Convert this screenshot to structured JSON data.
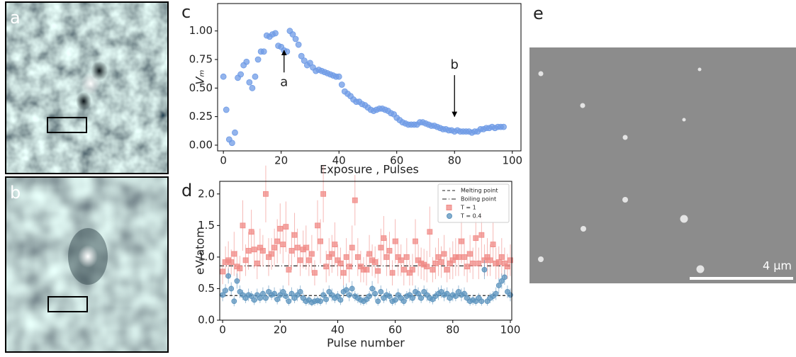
{
  "panel_labels": {
    "a": "a",
    "b": "b",
    "c": "c",
    "d": "d",
    "e": "e"
  },
  "scale_bar": "4 µm",
  "chart_data": [
    {
      "type": "scatter",
      "xlabel": "Exposure , Pulses",
      "ylabel": "Vₘ",
      "xlim": [
        -2,
        103
      ],
      "ylim": [
        -0.05,
        1.24
      ],
      "xticks": [
        0,
        20,
        40,
        60,
        80,
        100
      ],
      "yticks": [
        {
          "value": 0,
          "label": "0.00"
        },
        {
          "value": 0.25,
          "label": "0.25"
        },
        {
          "value": 0.5,
          "label": "0.50"
        },
        {
          "value": 0.75,
          "label": "0.75"
        },
        {
          "value": 1,
          "label": "1.00"
        }
      ],
      "series": [
        {
          "color": "#6f9be6",
          "marker": "circle",
          "x": [
            0,
            1,
            2,
            3,
            4,
            5,
            6,
            7,
            8,
            9,
            10,
            11,
            12,
            13,
            14,
            15,
            16,
            17,
            18,
            19,
            20,
            21,
            22,
            23,
            24,
            25,
            26,
            27,
            28,
            29,
            30,
            31,
            32,
            33,
            34,
            35,
            36,
            37,
            38,
            39,
            40,
            41,
            42,
            43,
            44,
            45,
            46,
            47,
            48,
            49,
            50,
            51,
            52,
            53,
            54,
            55,
            56,
            57,
            58,
            59,
            60,
            61,
            62,
            63,
            64,
            65,
            66,
            67,
            68,
            69,
            70,
            71,
            72,
            73,
            74,
            75,
            76,
            77,
            78,
            79,
            80,
            81,
            82,
            83,
            84,
            85,
            86,
            87,
            88,
            89,
            90,
            91,
            92,
            93,
            94,
            95,
            96,
            97
          ],
          "values": [
            0.6,
            0.31,
            0.05,
            0.02,
            0.11,
            0.59,
            0.62,
            0.7,
            0.73,
            0.55,
            0.5,
            0.6,
            0.75,
            0.82,
            0.82,
            0.96,
            0.95,
            0.97,
            0.98,
            0.87,
            0.86,
            0.83,
            0.82,
            1.0,
            0.97,
            0.93,
            0.88,
            0.78,
            0.74,
            0.7,
            0.72,
            0.68,
            0.65,
            0.66,
            0.65,
            0.64,
            0.63,
            0.62,
            0.61,
            0.6,
            0.6,
            0.53,
            0.47,
            0.45,
            0.43,
            0.4,
            0.38,
            0.38,
            0.36,
            0.35,
            0.33,
            0.31,
            0.3,
            0.31,
            0.32,
            0.32,
            0.31,
            0.3,
            0.28,
            0.27,
            0.24,
            0.22,
            0.2,
            0.19,
            0.18,
            0.18,
            0.18,
            0.18,
            0.2,
            0.2,
            0.19,
            0.18,
            0.17,
            0.17,
            0.16,
            0.15,
            0.14,
            0.14,
            0.13,
            0.13,
            0.12,
            0.13,
            0.12,
            0.12,
            0.12,
            0.12,
            0.11,
            0.12,
            0.12,
            0.14,
            0.14,
            0.15,
            0.15,
            0.16,
            0.15,
            0.16,
            0.16,
            0.16
          ]
        }
      ],
      "annotations": [
        {
          "text": "a",
          "xy": [
            21,
            0.83
          ],
          "xytext": [
            21,
            0.55
          ]
        },
        {
          "text": "b",
          "xy": [
            80,
            0.25
          ],
          "xytext": [
            80,
            0.7
          ]
        }
      ]
    },
    {
      "type": "scatter",
      "xlabel": "Pulse number",
      "ylabel": "eV/atom",
      "xlim": [
        -1,
        100.5
      ],
      "ylim": [
        0,
        2.2
      ],
      "xticks": [
        0,
        20,
        40,
        60,
        80,
        100
      ],
      "yticks": [
        {
          "value": 0,
          "label": "0.0"
        },
        {
          "value": 0.5,
          "label": "0.5"
        },
        {
          "value": 1,
          "label": "1.0"
        },
        {
          "value": 1.5,
          "label": "1.5"
        },
        {
          "value": 2,
          "label": "2.0"
        }
      ],
      "legend": "upper right",
      "hlines": [
        {
          "name": "Melting point",
          "value": 0.39,
          "style": "dashed",
          "color": "#222"
        },
        {
          "name": "Boiling point",
          "value": 0.86,
          "style": "dashdot",
          "color": "#222"
        }
      ],
      "series": [
        {
          "name": "T = 1",
          "color": "#f08a86",
          "marker": "square",
          "x": [
            0,
            1,
            2,
            3,
            4,
            5,
            6,
            7,
            8,
            9,
            10,
            11,
            12,
            13,
            14,
            15,
            16,
            17,
            18,
            19,
            20,
            21,
            22,
            23,
            24,
            25,
            26,
            27,
            28,
            29,
            30,
            31,
            32,
            33,
            34,
            35,
            36,
            37,
            38,
            39,
            40,
            41,
            42,
            43,
            44,
            45,
            46,
            47,
            48,
            49,
            50,
            51,
            52,
            53,
            54,
            55,
            56,
            57,
            58,
            59,
            60,
            61,
            62,
            63,
            64,
            65,
            66,
            67,
            68,
            69,
            70,
            71,
            72,
            73,
            74,
            75,
            76,
            77,
            78,
            79,
            80,
            81,
            82,
            83,
            84,
            85,
            86,
            87,
            88,
            89,
            90,
            91,
            92,
            93,
            94,
            95,
            96,
            97,
            98,
            99,
            100
          ],
          "values": [
            0.77,
            0.92,
            0.95,
            0.92,
            1.05,
            0.85,
            0.82,
            1.5,
            0.95,
            1.1,
            1.4,
            1.12,
            0.9,
            1.15,
            1.1,
            2.0,
            1.0,
            1.05,
            1.15,
            1.25,
            1.45,
            1.2,
            1.48,
            0.8,
            1.1,
            1.35,
            1.15,
            0.95,
            1.12,
            1.15,
            0.95,
            1.05,
            0.75,
            1.5,
            1.25,
            2.0,
            0.85,
            1.0,
            1.05,
            1.2,
            0.95,
            0.9,
            0.75,
            1.0,
            0.85,
            1.15,
            1.9,
            1.0,
            0.85,
            0.8,
            0.8,
            1.05,
            0.95,
            0.92,
            0.78,
            1.15,
            1.3,
            1.0,
            1.1,
            0.75,
            1.25,
            1.0,
            0.95,
            0.8,
            1.0,
            0.75,
            0.8,
            1.25,
            0.95,
            0.9,
            0.88,
            0.85,
            1.4,
            0.8,
            0.9,
            1.0,
            0.92,
            1.05,
            0.8,
            0.9,
            0.95,
            1.0,
            1.0,
            1.25,
            1.0,
            0.85,
            1.05,
            0.9,
            1.3,
            0.9,
            1.35,
            0.95,
            1.0,
            0.95,
            1.2,
            0.9,
            0.92,
            1.0,
            0.9,
            0.85,
            0.95
          ],
          "error": [
            0.2,
            0.25,
            0.3,
            0.2,
            0.35,
            0.25,
            0.2,
            0.4,
            0.25,
            0.3,
            0.35,
            0.3,
            0.25,
            0.3,
            0.25,
            0.45,
            0.3,
            0.25,
            0.3,
            0.35,
            0.4,
            0.3,
            0.4,
            0.25,
            0.3,
            0.35,
            0.3,
            0.25,
            0.3,
            0.35,
            0.25,
            0.3,
            0.2,
            0.4,
            0.35,
            0.45,
            0.25,
            0.3,
            0.3,
            0.35,
            0.25,
            0.25,
            0.2,
            0.3,
            0.25,
            0.35,
            0.4,
            0.3,
            0.25,
            0.2,
            0.25,
            0.3,
            0.25,
            0.25,
            0.2,
            0.3,
            0.35,
            0.3,
            0.3,
            0.2,
            0.35,
            0.3,
            0.25,
            0.25,
            0.3,
            0.2,
            0.25,
            0.35,
            0.25,
            0.25,
            0.25,
            0.25,
            0.4,
            0.2,
            0.25,
            0.3,
            0.25,
            0.3,
            0.2,
            0.25,
            0.3,
            0.3,
            0.3,
            0.35,
            0.3,
            0.25,
            0.3,
            0.25,
            0.35,
            0.25,
            0.4,
            0.25,
            0.3,
            0.25,
            0.35,
            0.25,
            0.25,
            0.3,
            0.25,
            0.2,
            0.25
          ]
        },
        {
          "name": "T = 0.4",
          "color": "#5b93bd",
          "marker": "circle",
          "x": [
            0,
            1,
            2,
            3,
            4,
            5,
            6,
            7,
            8,
            9,
            10,
            11,
            12,
            13,
            14,
            15,
            16,
            17,
            18,
            19,
            20,
            21,
            22,
            23,
            24,
            25,
            26,
            27,
            28,
            29,
            30,
            31,
            32,
            33,
            34,
            35,
            36,
            37,
            38,
            39,
            40,
            41,
            42,
            43,
            44,
            45,
            46,
            47,
            48,
            49,
            50,
            51,
            52,
            53,
            54,
            55,
            56,
            57,
            58,
            59,
            60,
            61,
            62,
            63,
            64,
            65,
            66,
            67,
            68,
            69,
            70,
            71,
            72,
            73,
            74,
            75,
            76,
            77,
            78,
            79,
            80,
            81,
            82,
            83,
            84,
            85,
            86,
            87,
            88,
            89,
            90,
            91,
            92,
            93,
            94,
            95,
            96,
            97,
            98,
            99,
            100
          ],
          "values": [
            0.4,
            0.47,
            0.7,
            0.5,
            0.3,
            0.62,
            0.45,
            0.4,
            0.35,
            0.4,
            0.38,
            0.32,
            0.4,
            0.35,
            0.42,
            0.35,
            0.45,
            0.4,
            0.42,
            0.33,
            0.4,
            0.45,
            0.38,
            0.3,
            0.42,
            0.35,
            0.4,
            0.45,
            0.35,
            0.3,
            0.32,
            0.28,
            0.3,
            0.31,
            0.3,
            0.4,
            0.33,
            0.45,
            0.4,
            0.35,
            0.38,
            0.32,
            0.45,
            0.48,
            0.4,
            0.5,
            0.38,
            0.35,
            0.32,
            0.3,
            0.33,
            0.38,
            0.5,
            0.42,
            0.3,
            0.45,
            0.35,
            0.4,
            0.38,
            0.3,
            0.32,
            0.4,
            0.35,
            0.3,
            0.38,
            0.4,
            0.35,
            0.45,
            0.42,
            0.35,
            0.45,
            0.4,
            0.35,
            0.33,
            0.38,
            0.42,
            0.45,
            0.4,
            0.42,
            0.35,
            0.4,
            0.38,
            0.45,
            0.4,
            0.42,
            0.35,
            0.3,
            0.32,
            0.3,
            0.35,
            0.3,
            0.8,
            0.3,
            0.35,
            0.38,
            0.42,
            0.55,
            0.62,
            0.68,
            0.45,
            0.4
          ],
          "error": [
            0.1,
            0.1,
            0.12,
            0.1,
            0.08,
            0.12,
            0.1,
            0.08,
            0.08,
            0.1,
            0.08,
            0.08,
            0.1,
            0.08,
            0.1,
            0.08,
            0.1,
            0.08,
            0.1,
            0.08,
            0.1,
            0.1,
            0.08,
            0.07,
            0.1,
            0.08,
            0.1,
            0.1,
            0.08,
            0.07,
            0.08,
            0.06,
            0.07,
            0.07,
            0.07,
            0.1,
            0.08,
            0.1,
            0.1,
            0.08,
            0.08,
            0.08,
            0.1,
            0.1,
            0.1,
            0.12,
            0.08,
            0.08,
            0.08,
            0.07,
            0.08,
            0.08,
            0.12,
            0.1,
            0.07,
            0.1,
            0.08,
            0.1,
            0.08,
            0.07,
            0.08,
            0.1,
            0.08,
            0.07,
            0.08,
            0.1,
            0.08,
            0.1,
            0.1,
            0.08,
            0.1,
            0.1,
            0.08,
            0.08,
            0.08,
            0.1,
            0.1,
            0.1,
            0.1,
            0.08,
            0.1,
            0.08,
            0.1,
            0.1,
            0.1,
            0.08,
            0.07,
            0.08,
            0.07,
            0.08,
            0.07,
            0.15,
            0.07,
            0.08,
            0.08,
            0.1,
            0.12,
            0.12,
            0.12,
            0.1,
            0.1
          ]
        }
      ]
    }
  ]
}
